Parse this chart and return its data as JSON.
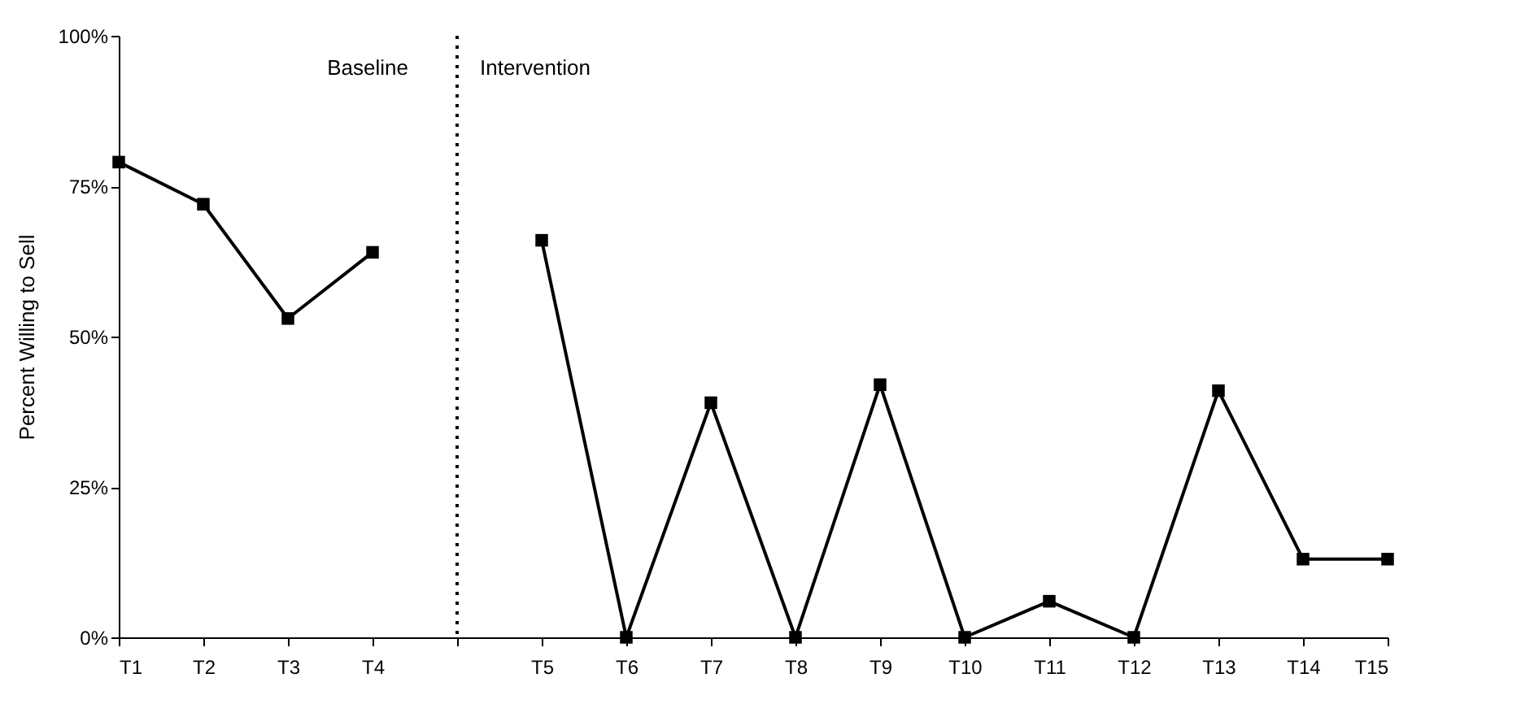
{
  "chart_data": {
    "type": "line",
    "ylabel": "Percent Willing to Sell",
    "annotations": [
      "Baseline",
      "Intervention"
    ],
    "categories": [
      "T1",
      "T2",
      "T3",
      "T4",
      null,
      "T5",
      "T6",
      "T7",
      "T8",
      "T9",
      "T10",
      "T11",
      "T12",
      "T13",
      "T14",
      "T15"
    ],
    "series": [
      {
        "color": "#000000",
        "values": [
          79,
          72,
          53,
          64,
          null,
          66,
          0,
          39,
          0,
          42,
          0,
          6,
          0,
          41,
          13,
          13
        ]
      }
    ],
    "ylim": [
      0,
      100
    ],
    "yticks": [
      {
        "value": 0,
        "label": "0%"
      },
      {
        "value": 25,
        "label": "25%"
      },
      {
        "value": 50,
        "label": "50%"
      },
      {
        "value": 75,
        "label": "75%"
      },
      {
        "value": 100,
        "label": "100%"
      }
    ],
    "marker": "square",
    "line_style": "solid",
    "legend": false
  }
}
